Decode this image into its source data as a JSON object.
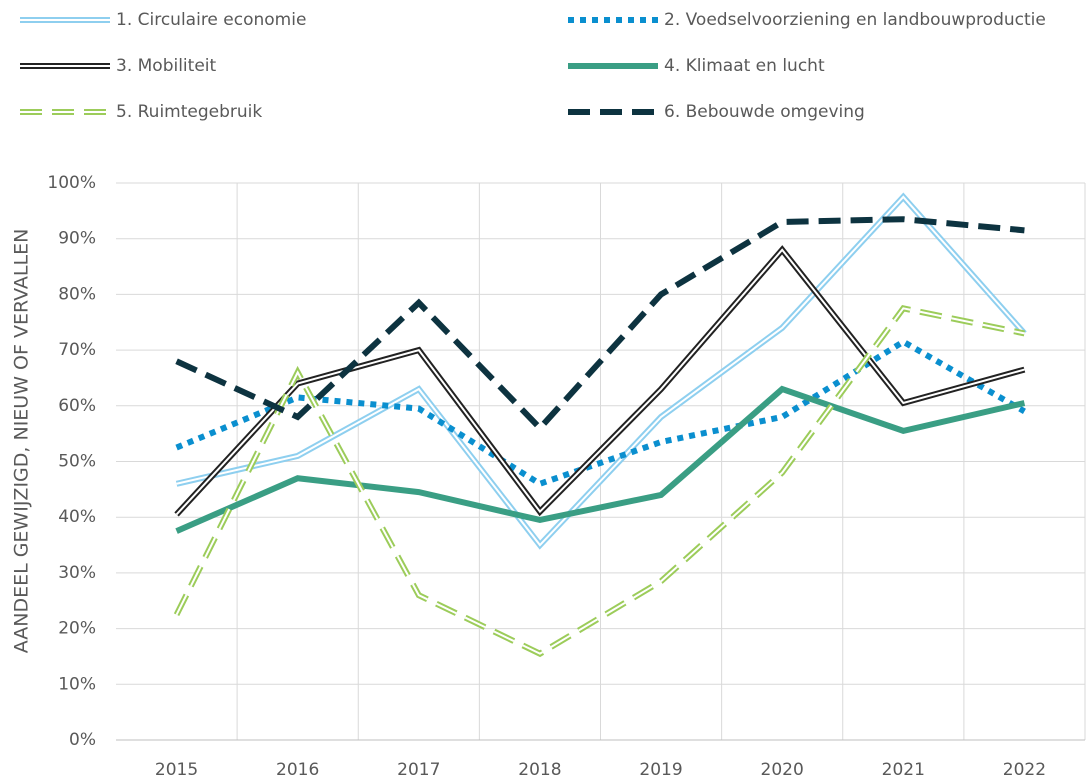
{
  "chart_data": {
    "type": "line",
    "y_label": "AANDEEL GEWIJZIGD, NIEUW OF VERVALLEN",
    "categories": [
      "2015",
      "2016",
      "2017",
      "2018",
      "2019",
      "2020",
      "2021",
      "2022"
    ],
    "series": [
      {
        "name": "1. Circulaire economie",
        "color": "#8ecfef",
        "style": "double",
        "values": [
          46,
          51,
          63,
          35,
          58,
          74,
          97.5,
          73
        ]
      },
      {
        "name": "2. Voedselvoorziening en landbouwproductie",
        "color": "#0a8fcf",
        "style": "dotted",
        "values": [
          52.5,
          61.5,
          59.5,
          46,
          53.5,
          58,
          71.5,
          59
        ]
      },
      {
        "name": "3. Mobiliteit",
        "color": "#222222",
        "style": "double",
        "values": [
          40.5,
          64,
          70,
          41,
          63,
          88,
          60.5,
          66.5
        ]
      },
      {
        "name": "4. Klimaat en lucht",
        "color": "#3a9e84",
        "style": "solid",
        "values": [
          37.5,
          47,
          44.5,
          39.5,
          44,
          63,
          55.5,
          60.5
        ]
      },
      {
        "name": "5. Ruimtegebruik",
        "color": "#9ccc5a",
        "style": "double-dashed",
        "values": [
          22.5,
          66,
          26,
          15.5,
          28.5,
          48,
          77.5,
          73
        ]
      },
      {
        "name": "6. Bebouwde omgeving",
        "color": "#0d3340",
        "style": "dashed",
        "values": [
          68,
          58,
          78.5,
          56,
          80,
          93,
          93.5,
          91.5
        ]
      }
    ],
    "ylim": [
      0,
      100
    ],
    "yticks": [
      {
        "value": 0,
        "label": "0%"
      },
      {
        "value": 10,
        "label": "10%"
      },
      {
        "value": 20,
        "label": "20%"
      },
      {
        "value": 30,
        "label": "30%"
      },
      {
        "value": 40,
        "label": "40%"
      },
      {
        "value": 50,
        "label": "50%"
      },
      {
        "value": 60,
        "label": "60%"
      },
      {
        "value": 70,
        "label": "70%"
      },
      {
        "value": 80,
        "label": "80%"
      },
      {
        "value": 90,
        "label": "90%"
      },
      {
        "value": 100,
        "label": "100%"
      }
    ],
    "grid": true,
    "legend": "top"
  }
}
